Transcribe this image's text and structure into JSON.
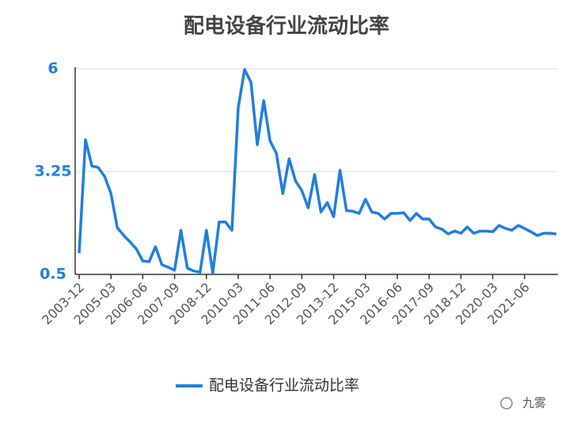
{
  "chart_data": {
    "type": "line",
    "title": "配电设备行业流动比率",
    "categories": [
      "2003-12",
      null,
      null,
      null,
      null,
      "2005-03",
      null,
      null,
      null,
      null,
      "2006-06",
      null,
      null,
      null,
      null,
      "2007-09",
      null,
      null,
      null,
      null,
      "2008-12",
      null,
      null,
      null,
      null,
      "2010-03",
      null,
      null,
      null,
      null,
      "2011-06",
      null,
      null,
      null,
      null,
      "2012-09",
      null,
      null,
      null,
      null,
      "2013-12",
      null,
      null,
      null,
      null,
      "2015-03",
      null,
      null,
      null,
      null,
      "2016-06",
      null,
      null,
      null,
      null,
      "2017-09",
      null,
      null,
      null,
      null,
      "2018-12",
      null,
      null,
      null,
      null,
      "2020-03",
      null,
      null,
      null,
      null,
      "2021-06",
      null,
      null,
      null,
      null,
      null
    ],
    "series": [
      {
        "name": "配电设备行业流动比率",
        "color": "#1f7fe0",
        "values": [
          1.07,
          4.1,
          3.4,
          3.36,
          3.12,
          2.66,
          1.75,
          1.54,
          1.37,
          1.18,
          0.86,
          0.84,
          1.24,
          0.76,
          0.69,
          0.61,
          1.68,
          0.67,
          0.59,
          0.56,
          1.68,
          0.54,
          1.9,
          1.9,
          1.68,
          4.96,
          5.98,
          5.64,
          3.97,
          5.15,
          4.07,
          3.74,
          2.66,
          3.59,
          3.0,
          2.74,
          2.28,
          3.17,
          2.17,
          2.42,
          2.04,
          3.29,
          2.21,
          2.19,
          2.13,
          2.51,
          2.17,
          2.13,
          1.98,
          2.13,
          2.13,
          2.15,
          1.94,
          2.13,
          1.98,
          1.98,
          1.77,
          1.71,
          1.58,
          1.66,
          1.6,
          1.77,
          1.6,
          1.66,
          1.66,
          1.64,
          1.81,
          1.73,
          1.68,
          1.81,
          1.73,
          1.64,
          1.54,
          1.6,
          1.6,
          1.58
        ]
      }
    ],
    "ylim": [
      0.5,
      6
    ],
    "yticks": [
      0.5,
      3.25,
      6
    ],
    "grid": true,
    "legend": "bottom",
    "annotation": "九雾"
  }
}
